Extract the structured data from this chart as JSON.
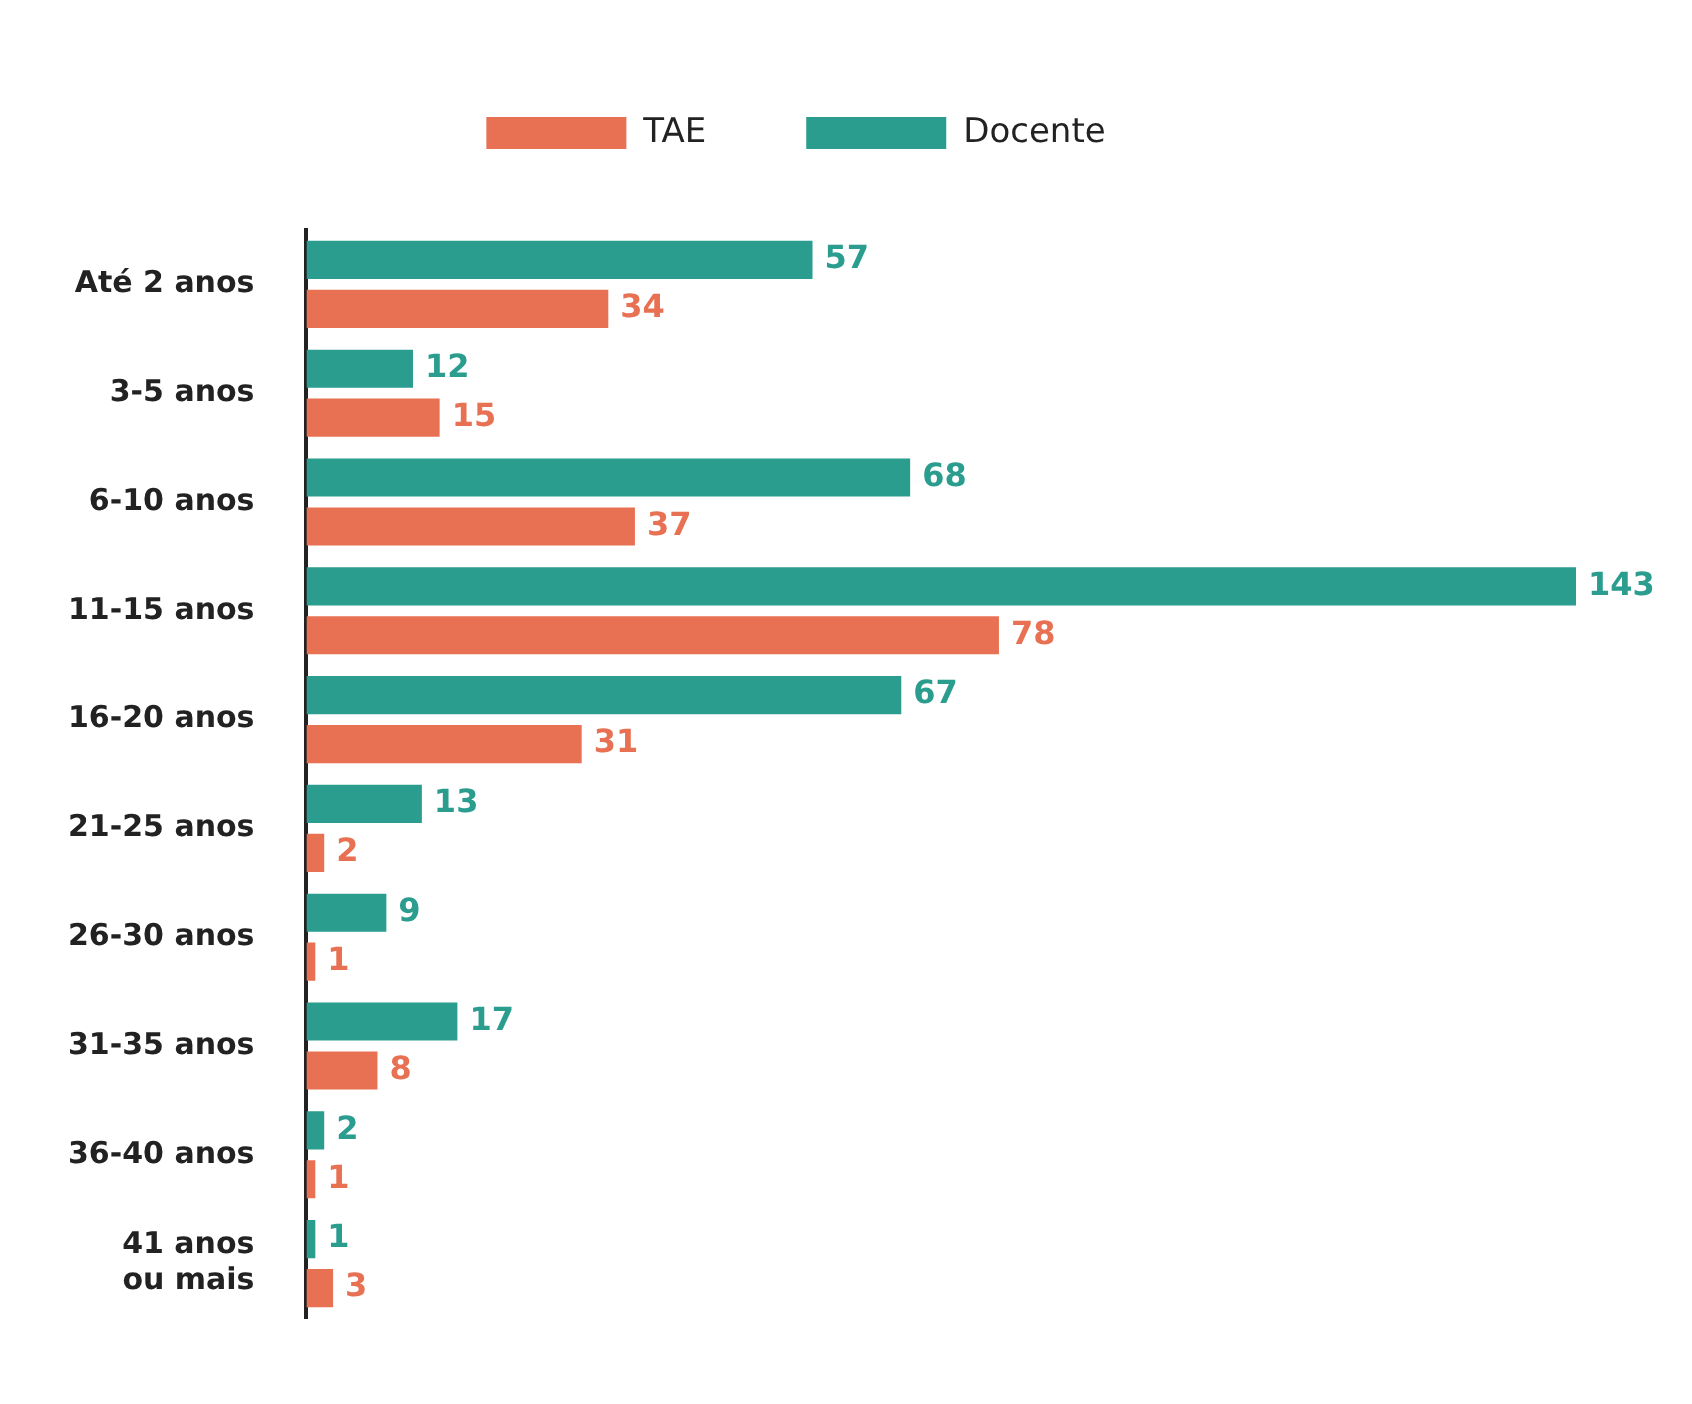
{
  "chart_data": {
    "type": "bar",
    "orientation": "horizontal",
    "categories": [
      "Até 2 anos",
      "3-5 anos",
      "6-10 anos",
      "11-15 anos",
      "16-20 anos",
      "21-25 anos",
      "26-30 anos",
      "31-35 anos",
      "36-40 anos",
      "41 anos ou mais"
    ],
    "series": [
      {
        "name": "Docente",
        "color": "#2a9d8f",
        "values": [
          57,
          12,
          68,
          143,
          67,
          13,
          9,
          17,
          2,
          1
        ]
      },
      {
        "name": "TAE",
        "color": "#e87153",
        "values": [
          34,
          15,
          37,
          78,
          31,
          2,
          1,
          8,
          1,
          3
        ]
      }
    ],
    "data_labels": true,
    "legend": "top"
  }
}
